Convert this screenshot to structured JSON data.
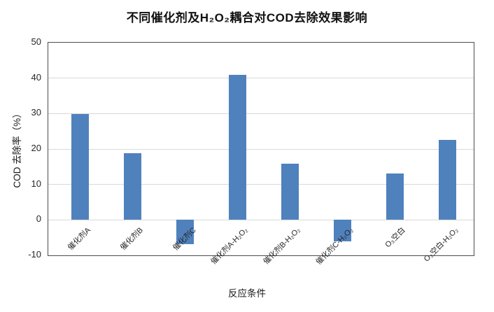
{
  "chart_data": {
    "type": "bar",
    "title": "不同催化剂及H₂O₂耦合对COD去除效果影响",
    "xlabel": "反应条件",
    "ylabel": "COD 去除率（%）",
    "categories": [
      "催化剂A",
      "催化剂B",
      "催化剂C",
      "催化剂A-H₂O₂",
      "催化剂B-H₂O₂",
      "催化剂C-H₂O₂",
      "O₃空白",
      "O₃空白-H₂O₂"
    ],
    "values": [
      29.8,
      18.8,
      -6.8,
      41,
      15.8,
      -6,
      13,
      22.5
    ],
    "ylim": [
      -10,
      50
    ],
    "yticks": [
      50,
      40,
      30,
      20,
      10,
      0,
      -10
    ],
    "grid": true,
    "legend_position": "none",
    "colors": {
      "bar_fill": "#4F81BD",
      "gridline": "#d9d9d9",
      "frame": "#4d4d4f",
      "text": "#262626"
    }
  }
}
